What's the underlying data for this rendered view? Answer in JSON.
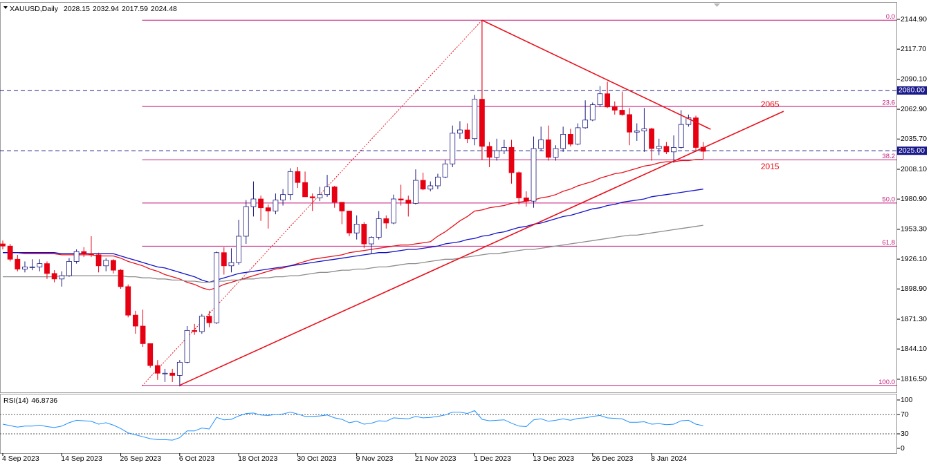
{
  "chart_data": [
    {
      "type": "candlestick",
      "title": "XAUUSD,Daily",
      "categories": [
        "4 Sep 2023",
        null,
        null,
        null,
        null,
        null,
        null,
        null,
        "14 Sep 2023",
        null,
        null,
        null,
        null,
        null,
        null,
        null,
        "26 Sep 2023",
        null,
        null,
        null,
        null,
        null,
        null,
        null,
        "6 Oct 2023",
        null,
        null,
        null,
        null,
        null,
        null,
        null,
        "18 Oct 2023",
        null,
        null,
        null,
        null,
        null,
        null,
        null,
        "30 Oct 2023",
        null,
        null,
        null,
        null,
        null,
        null,
        null,
        "9 Nov 2023",
        null,
        null,
        null,
        null,
        null,
        null,
        null,
        "21 Nov 2023",
        null,
        null,
        null,
        null,
        null,
        null,
        null,
        "1 Dec 2023",
        null,
        null,
        null,
        null,
        null,
        null,
        null,
        "13 Dec 2023",
        null,
        null,
        null,
        null,
        null,
        null,
        null,
        "26 Dec 2023",
        null,
        null,
        null,
        null,
        null,
        null,
        null,
        "8 Jan 2024",
        null,
        null,
        null,
        null,
        null,
        null,
        null
      ],
      "open": [
        1940,
        1938,
        1926,
        1917,
        1919,
        1919,
        1922,
        1913,
        1908,
        1911,
        1924,
        1933,
        1931,
        1930,
        1920,
        1925,
        1916,
        1901,
        1875,
        1865,
        1849,
        1829,
        1822,
        1822,
        1820,
        1832,
        1861,
        1860,
        1874,
        1868,
        1932,
        1920,
        1923,
        1947,
        1974,
        1981,
        1973,
        1970,
        1980,
        1985,
        2006,
        1996,
        1983,
        1982,
        1985,
        1992,
        1978,
        1970,
        1950,
        1958,
        1940,
        1946,
        1963,
        1959,
        1981,
        1980,
        1977,
        1998,
        1990,
        1993,
        2001,
        2013,
        2041,
        2044,
        2036,
        2072,
        2029,
        2019,
        2025,
        2028,
        2005,
        1982,
        1979,
        2027,
        2035,
        2019,
        2027,
        2040,
        2031,
        2046,
        2053,
        2067,
        2077,
        2065,
        2062,
        2058,
        2042,
        2043,
        2045,
        2027,
        2029,
        2024,
        2028,
        2049,
        2055,
        2028.15
      ],
      "high": [
        1943,
        1940,
        1930,
        1924,
        1926,
        1926,
        1924,
        1916,
        1915,
        1927,
        1935,
        1937,
        1947,
        1932,
        1927,
        1926,
        1917,
        1903,
        1879,
        1880,
        1849,
        1834,
        1826,
        1826,
        1834,
        1865,
        1867,
        1876,
        1879,
        1933,
        1937,
        1936,
        1962,
        1980,
        1997,
        1984,
        1976,
        1986,
        1990,
        2009,
        2010,
        2006,
        1986,
        1992,
        2003,
        1993,
        1978,
        1970,
        1966,
        1960,
        1947,
        1970,
        1966,
        1985,
        1994,
        1984,
        2008,
        2005,
        1997,
        2004,
        2017,
        2048,
        2052,
        2050,
        2076,
        2144,
        2033,
        2036,
        2035,
        2035,
        2006,
        1988,
        2038,
        2047,
        2048,
        2030,
        2047,
        2045,
        2050,
        2071,
        2069,
        2084,
        2088,
        2070,
        2079,
        2064,
        2050,
        2064,
        2046,
        2036,
        2033,
        2039,
        2062,
        2058,
        2057,
        2032.94
      ],
      "low": [
        1935,
        1924,
        1915,
        1914,
        1916,
        1915,
        1908,
        1905,
        1901,
        1910,
        1922,
        1928,
        1928,
        1914,
        1915,
        1913,
        1899,
        1873,
        1858,
        1846,
        1827,
        1816,
        1814,
        1814,
        1810,
        1831,
        1857,
        1858,
        1864,
        1867,
        1912,
        1914,
        1921,
        1940,
        1965,
        1961,
        1954,
        1967,
        1975,
        1980,
        1991,
        1985,
        1970,
        1979,
        1983,
        1973,
        1958,
        1947,
        1944,
        1936,
        1931,
        1944,
        1954,
        1958,
        1975,
        1965,
        1976,
        1989,
        1988,
        1990,
        2000,
        2010,
        2036,
        2032,
        2030,
        2017,
        2010,
        2016,
        2022,
        1995,
        1976,
        1974,
        1973,
        2025,
        2016,
        2016,
        2024,
        2029,
        2030,
        2045,
        2052,
        2065,
        2064,
        2058,
        2057,
        2030,
        2034,
        2024,
        2016,
        2021,
        2022,
        2014,
        2027,
        2047,
        2024,
        2017.59
      ],
      "close": [
        1938,
        1926,
        1917,
        1919,
        1919,
        1922,
        1913,
        1908,
        1911,
        1924,
        1933,
        1931,
        1930,
        1920,
        1925,
        1916,
        1901,
        1875,
        1865,
        1849,
        1829,
        1822,
        1822,
        1820,
        1832,
        1861,
        1860,
        1874,
        1868,
        1932,
        1920,
        1923,
        1947,
        1974,
        1981,
        1973,
        1970,
        1980,
        1985,
        2006,
        1996,
        1983,
        1982,
        1985,
        1992,
        1978,
        1970,
        1950,
        1958,
        1940,
        1946,
        1963,
        1959,
        1981,
        1980,
        1977,
        1998,
        1990,
        1993,
        2001,
        2013,
        2041,
        2044,
        2036,
        2072,
        2029,
        2019,
        2025,
        2028,
        2005,
        1982,
        1979,
        2027,
        2035,
        2019,
        2027,
        2040,
        2031,
        2046,
        2053,
        2067,
        2077,
        2065,
        2062,
        2058,
        2042,
        2043,
        2045,
        2027,
        2029,
        2024,
        2028,
        2049,
        2055,
        2028,
        2024.48
      ],
      "up_color": "#ffffff",
      "up_outline": "#1a1a80",
      "down_color": "#e60012",
      "down_outline": "#e60012",
      "series": [
        {
          "color": "#e8101c",
          "values": [
            1932,
            1932,
            1932,
            1931,
            1931,
            1931,
            1931,
            1931,
            1930,
            1930,
            1930,
            1930,
            1930,
            1929,
            1929,
            1929,
            1927,
            1924,
            1922,
            1920,
            1917,
            1915,
            1912,
            1910,
            1908,
            1905,
            1903,
            1900,
            1898,
            1900,
            1903,
            1905,
            1907,
            1909,
            1911,
            1913,
            1915,
            1917,
            1918,
            1920,
            1922,
            1924,
            1926,
            1927,
            1928,
            1929,
            1930,
            1932,
            1933,
            1934,
            1935,
            1936,
            1937,
            1938,
            1939,
            1939,
            1940,
            1941,
            1942,
            1947,
            1951,
            1956,
            1961,
            1965,
            1970,
            1971,
            1973,
            1974,
            1975,
            1977,
            1978,
            1979,
            1980,
            1982,
            1983,
            1985,
            1988,
            1990,
            1993,
            1995,
            1997,
            2000,
            2002,
            2004,
            2005,
            2007,
            2009,
            2011,
            2012,
            2014,
            2015,
            2015,
            2016,
            2016,
            2017,
            2017
          ]
        },
        {
          "color": "#1010c8",
          "values": [
            1932,
            1932,
            1932,
            1932,
            1932,
            1932,
            1932,
            1932,
            1931,
            1931,
            1931,
            1931,
            1931,
            1931,
            1931,
            1931,
            1929,
            1927,
            1925,
            1923,
            1921,
            1919,
            1918,
            1916,
            1914,
            1912,
            1910,
            1907,
            1905,
            1907,
            1909,
            1911,
            1913,
            1914,
            1915,
            1916,
            1917,
            1918,
            1919,
            1920,
            1921,
            1922,
            1923,
            1924,
            1925,
            1926,
            1927,
            1928,
            1929,
            1930,
            1931,
            1932,
            1932,
            1933,
            1934,
            1935,
            1935,
            1936,
            1937,
            1938,
            1940,
            1941,
            1942,
            1944,
            1945,
            1947,
            1948,
            1950,
            1951,
            1953,
            1955,
            1956,
            1958,
            1959,
            1961,
            1963,
            1965,
            1966,
            1968,
            1970,
            1972,
            1973,
            1975,
            1976,
            1978,
            1979,
            1980,
            1981,
            1983,
            1984,
            1985,
            1986,
            1987,
            1988,
            1989,
            1990
          ]
        },
        {
          "color": "#8c8c8c",
          "values": [
            1910,
            1910,
            1910,
            1910,
            1910,
            1910,
            1910,
            1910,
            1911,
            1911,
            1911,
            1911,
            1911,
            1911,
            1911,
            1911,
            1911,
            1910,
            1910,
            1909,
            1909,
            1908,
            1908,
            1907,
            1907,
            1906,
            1906,
            1905,
            1905,
            1906,
            1906,
            1907,
            1907,
            1908,
            1908,
            1909,
            1909,
            1910,
            1910,
            1911,
            1911,
            1912,
            1913,
            1914,
            1914,
            1915,
            1916,
            1916,
            1917,
            1917,
            1918,
            1919,
            1919,
            1920,
            1921,
            1922,
            1922,
            1923,
            1924,
            1925,
            1926,
            1926,
            1927,
            1928,
            1929,
            1930,
            1931,
            1931,
            1932,
            1933,
            1934,
            1935,
            1935,
            1936,
            1937,
            1938,
            1939,
            1940,
            1941,
            1942,
            1943,
            1944,
            1945,
            1946,
            1947,
            1948,
            1948,
            1949,
            1950,
            1951,
            1952,
            1953,
            1954,
            1955,
            1956,
            1957
          ]
        }
      ],
      "ylim": [
        1804.5,
        2159.4
      ],
      "yticks": [
        {
          "value": 2144.9,
          "label": "2144.90"
        },
        {
          "value": 2117.7,
          "label": "2117.70"
        },
        {
          "value": 2090.1,
          "label": "2090.10"
        },
        {
          "value": 2062.9,
          "label": "2062.90"
        },
        {
          "value": 2035.7,
          "label": "2035.70"
        },
        {
          "value": 2008.1,
          "label": "2008.10"
        },
        {
          "value": 1980.9,
          "label": "1980.90"
        },
        {
          "value": 1953.3,
          "label": "1953.30"
        },
        {
          "value": 1926.1,
          "label": "1926.10"
        },
        {
          "value": 1898.9,
          "label": "1898.90"
        },
        {
          "value": 1871.3,
          "label": "1871.30"
        },
        {
          "value": 1844.1,
          "label": "1844.10"
        },
        {
          "value": 1816.5,
          "label": "1816.50"
        }
      ],
      "hlines": [
        {
          "value": 2080,
          "label": "2080.00"
        },
        {
          "value": 2025,
          "label": "2025.00"
        }
      ],
      "hline_color": "#1a1a8c",
      "fibonacci": {
        "color": "#c2187a",
        "from": [
          18.9,
          1810.5
        ],
        "to": [
          65,
          2144.1
        ],
        "levels": [
          {
            "value": 2144.1,
            "label": "0.0"
          },
          {
            "value": 2065.4,
            "label": "23.6"
          },
          {
            "value": 2016.7,
            "label": "38.2"
          },
          {
            "value": 1977.3,
            "label": "50.0"
          },
          {
            "value": 1937.9,
            "label": "61.8"
          },
          {
            "value": 1810.5,
            "label": "100.0"
          }
        ]
      },
      "trendlines": [
        {
          "color": "#e8101c",
          "from": [
            24,
            1811
          ],
          "to": [
            105.9,
            2061
          ]
        },
        {
          "color": "#e8101c",
          "from": [
            65,
            2144.1
          ],
          "to": [
            96,
            2044.6
          ]
        }
      ],
      "annotations": [
        {
          "text": "2065",
          "x": 102.8,
          "y": 2067,
          "color": "#e8101c"
        },
        {
          "text": "2015",
          "x": 102.8,
          "y": 2010,
          "color": "#e8101c"
        }
      ]
    },
    {
      "type": "line",
      "series": [
        {
          "name": "RSI(14)",
          "color": "#1e90ff",
          "values": [
            50,
            47,
            44,
            46,
            46,
            48,
            45,
            43,
            46,
            53,
            58,
            57,
            56,
            50,
            53,
            48,
            41,
            32,
            28,
            24,
            20,
            18,
            18,
            17,
            22,
            36,
            36,
            42,
            40,
            64,
            59,
            60,
            67,
            72,
            73,
            69,
            68,
            70,
            71,
            75,
            71,
            66,
            66,
            67,
            69,
            63,
            60,
            53,
            56,
            50,
            52,
            57,
            56,
            63,
            62,
            61,
            66,
            63,
            64,
            66,
            69,
            75,
            75,
            72,
            78,
            60,
            57,
            58,
            59,
            52,
            46,
            45,
            59,
            61,
            56,
            58,
            61,
            58,
            62,
            63,
            66,
            68,
            63,
            62,
            61,
            54,
            54,
            55,
            50,
            51,
            49,
            50,
            57,
            58,
            50,
            46.8736
          ]
        }
      ],
      "ylim": [
        -10,
        111.4
      ],
      "yticks": [
        100,
        70,
        30,
        0
      ],
      "levels": [
        70,
        30
      ]
    }
  ]
}
